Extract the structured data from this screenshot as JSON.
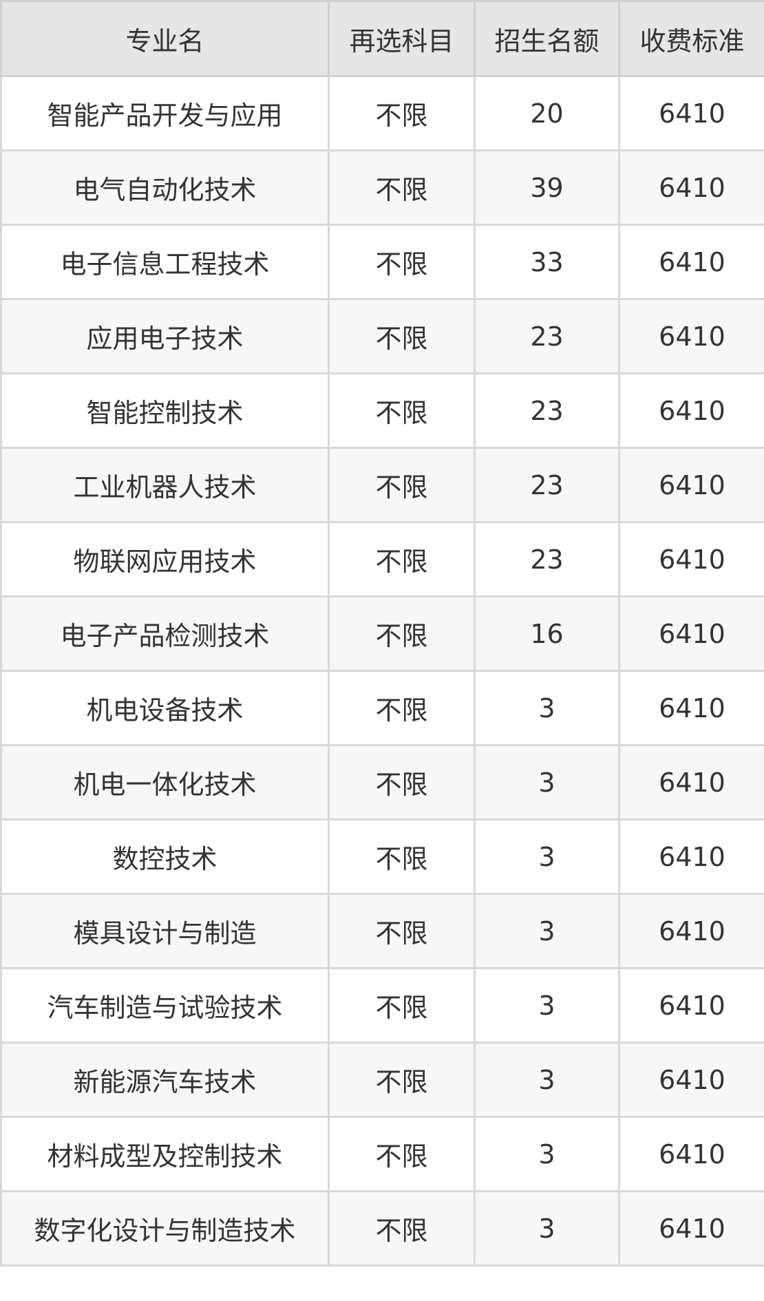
{
  "table": {
    "headers": [
      "专业名",
      "再选科目",
      "招生名额",
      "收费标准"
    ],
    "rows": [
      [
        "智能产品开发与应用",
        "不限",
        "20",
        "6410"
      ],
      [
        "电气自动化技术",
        "不限",
        "39",
        "6410"
      ],
      [
        "电子信息工程技术",
        "不限",
        "33",
        "6410"
      ],
      [
        "应用电子技术",
        "不限",
        "23",
        "6410"
      ],
      [
        "智能控制技术",
        "不限",
        "23",
        "6410"
      ],
      [
        "工业机器人技术",
        "不限",
        "23",
        "6410"
      ],
      [
        "物联网应用技术",
        "不限",
        "23",
        "6410"
      ],
      [
        "电子产品检测技术",
        "不限",
        "16",
        "6410"
      ],
      [
        "机电设备技术",
        "不限",
        "3",
        "6410"
      ],
      [
        "机电一体化技术",
        "不限",
        "3",
        "6410"
      ],
      [
        "数控技术",
        "不限",
        "3",
        "6410"
      ],
      [
        "模具设计与制造",
        "不限",
        "3",
        "6410"
      ],
      [
        "汽车制造与试验技术",
        "不限",
        "3",
        "6410"
      ],
      [
        "新能源汽车技术",
        "不限",
        "3",
        "6410"
      ],
      [
        "材料成型及控制技术",
        "不限",
        "3",
        "6410"
      ],
      [
        "数字化设计与制造技术",
        "不限",
        "3",
        "6410"
      ]
    ]
  }
}
